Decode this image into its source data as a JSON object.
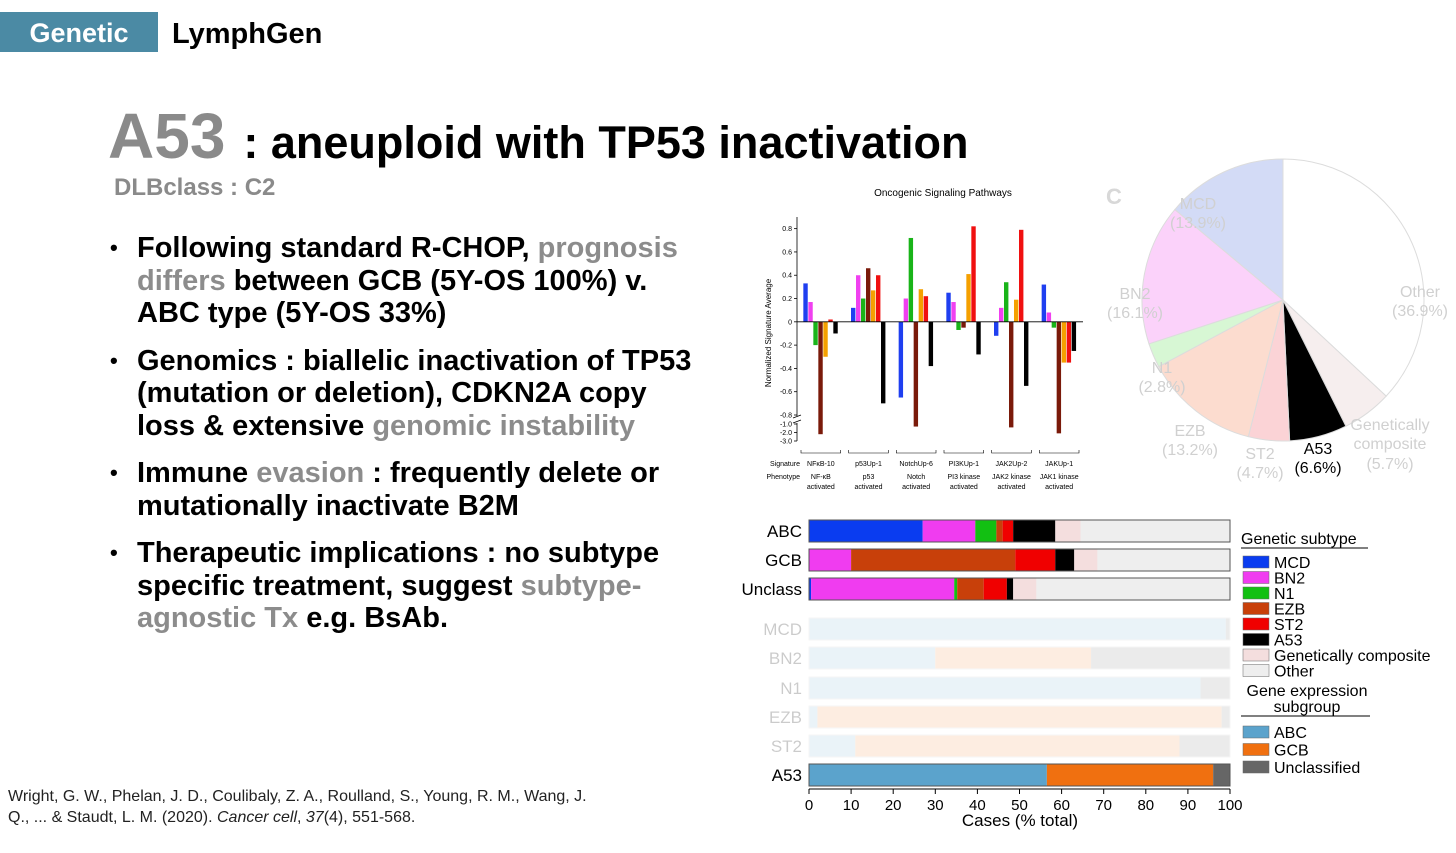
{
  "header": {
    "tag": "Genetic",
    "title": "LymphGen"
  },
  "title": {
    "main": "A53",
    "rest": ": aneuploid with TP53 inactivation",
    "sub": "DLBclass : C2"
  },
  "bullets": [
    [
      "Following standard R-CHOP, ",
      {
        "text": "prognosis differs",
        "color": "#8c8c8c"
      },
      " between GCB (5Y-OS 100%) v. ABC type (5Y-OS 33%)"
    ],
    [
      "Genomics : biallelic inactivation of TP53 (mutation or deletion), CDKN2A copy loss & extensive ",
      {
        "text": "genomic instability",
        "color": "#8c8c8c"
      }
    ],
    [
      "Immune ",
      {
        "text": "evasion",
        "color": "#8c8c8c"
      },
      " : frequently delete or mutationally inactivate B2M"
    ],
    [
      "Therapeutic implications : no subtype specific treatment, suggest ",
      {
        "text": "subtype-agnostic Tx",
        "color": "#8c8c8c"
      },
      " e.g. BsAb."
    ]
  ],
  "citation": [
    "Wright, G. W., Phelan, J. D., Coulibaly, Z. A., Roulland, S., Young, R. M., Wang, J. Q., ... & Staudt, L. M. (2020). ",
    {
      "text": "Cancer cell",
      "italic": true
    },
    ", ",
    {
      "text": "37",
      "italic": true
    },
    "(4), 551-568."
  ],
  "chart_data": [
    {
      "type": "bar",
      "title": "Oncogenic Signaling Pathways",
      "ylabel": "Normalized Signature Average",
      "row_labels": [
        "Signature",
        "Phenotype"
      ],
      "categories": [
        "NFκB-10",
        "p53Up-1",
        "NotchUp-6",
        "PI3KUp-1",
        "JAK2Up-2",
        "JAKUp-1"
      ],
      "phenotypes": [
        "NF-κB activated",
        "p53 activated",
        "Notch activated",
        "PI3 kinase activated",
        "JAK2 kinase activated",
        "JAK1 kinase activated"
      ],
      "series": [
        {
          "color": "#1f3ff0",
          "values": [
            0.33,
            0.12,
            -0.65,
            0.25,
            -0.12,
            0.32
          ]
        },
        {
          "color": "#f040f0",
          "values": [
            0.17,
            0.4,
            0.2,
            0.17,
            0.12,
            0.08
          ]
        },
        {
          "color": "#19b419",
          "values": [
            -0.2,
            0.2,
            0.72,
            -0.07,
            0.34,
            -0.05
          ]
        },
        {
          "color": "#7a1a0a",
          "values": [
            -2.2,
            0.46,
            -1.3,
            -0.05,
            -1.4,
            -2.1
          ]
        },
        {
          "color": "#f5a000",
          "values": [
            -0.3,
            0.27,
            0.28,
            0.41,
            0.19,
            -0.35
          ]
        },
        {
          "color": "#f01010",
          "values": [
            0.02,
            0.4,
            0.22,
            0.82,
            0.79,
            -0.35
          ]
        },
        {
          "color": "#000000",
          "values": [
            -0.1,
            -0.7,
            -0.38,
            -0.28,
            -0.55,
            -0.25
          ]
        }
      ],
      "ylim": [
        -3.0,
        0.9
      ],
      "ybreak": [
        -0.8,
        -1.0
      ],
      "yticks": [
        0.8,
        0.6,
        0.4,
        0.2,
        0,
        -0.2,
        -0.4,
        -0.6,
        -0.8,
        {
          "value": -1,
          "label": "-1.0"
        },
        {
          "value": -2,
          "label": "-2.0"
        },
        {
          "value": -3,
          "label": "-3.0"
        }
      ]
    },
    {
      "type": "pie",
      "panel": "C",
      "labels": [
        "Other",
        "Genetically composite",
        "A53",
        "ST2",
        "EZB",
        "N1",
        "BN2",
        "MCD"
      ],
      "values": [
        36.9,
        5.7,
        6.6,
        4.7,
        13.2,
        2.8,
        16.1,
        13.9
      ],
      "value_labels": [
        "(36.9%)",
        "(5.7%)",
        "(6.6%)",
        "(4.7%)",
        "(13.2%)",
        "(2.8%)",
        "(16.1%)",
        "(13.9%)"
      ],
      "colors": [
        "#ffffff",
        "#f6eeee",
        "#000000",
        "#fbd3d6",
        "#fcdccf",
        "#d7f7d4",
        "#fbd2fa",
        "#d3dbf6"
      ],
      "label_colors": [
        "#d0d0d0",
        "#d0d0d0",
        "#000000",
        "#d0d0d0",
        "#d0d0d0",
        "#d0d0d0",
        "#d0d0d0",
        "#d0d0d0"
      ]
    },
    {
      "type": "stacked_barh",
      "categories": [
        "ABC",
        "GCB",
        "Unclass",
        "MCD",
        "BN2",
        "N1",
        "EZB",
        "ST2",
        "A53"
      ],
      "category_opacity": [
        1,
        1,
        1,
        0.12,
        0.12,
        0.12,
        0.12,
        0.12,
        1
      ],
      "series_groups": [
        {
          "title": "Genetic subtype",
          "series": [
            {
              "name": "MCD",
              "color": "#0a3cf0",
              "values": [
                27,
                0,
                0.5,
                null,
                null,
                null,
                null,
                null,
                null
              ]
            },
            {
              "name": "BN2",
              "color": "#f03cf0",
              "values": [
                12.5,
                10,
                34,
                null,
                null,
                null,
                null,
                null,
                null
              ]
            },
            {
              "name": "N1",
              "color": "#12c012",
              "values": [
                5,
                0,
                0.7,
                null,
                null,
                null,
                null,
                null,
                null
              ]
            },
            {
              "name": "EZB",
              "color": "#c8400a",
              "values": [
                1.5,
                39,
                6.3,
                null,
                null,
                null,
                null,
                null,
                null
              ]
            },
            {
              "name": "ST2",
              "color": "#f00000",
              "values": [
                2.5,
                9.5,
                5.5,
                null,
                null,
                null,
                null,
                null,
                null
              ]
            },
            {
              "name": "A53",
              "color": "#000000",
              "values": [
                10,
                4.5,
                1.5,
                null,
                null,
                null,
                null,
                null,
                null
              ]
            },
            {
              "name": "Genetically composite",
              "color": "#f4dede",
              "values": [
                6,
                5.5,
                5.5,
                null,
                null,
                null,
                null,
                null,
                null
              ]
            },
            {
              "name": "Other",
              "color": "#eeeeee",
              "values": [
                35.5,
                31.5,
                46,
                null,
                null,
                null,
                null,
                null,
                null
              ]
            }
          ]
        },
        {
          "title": "Gene expression subgroup",
          "series": [
            {
              "name": "ABC",
              "color": "#5ba3cc",
              "values": [
                null,
                null,
                null,
                99,
                30,
                93,
                2,
                11,
                56.5
              ]
            },
            {
              "name": "GCB",
              "color": "#f07010",
              "values": [
                null,
                null,
                null,
                0,
                37,
                0,
                96,
                77,
                39.5
              ]
            },
            {
              "name": "Unclassified",
              "color": "#666666",
              "values": [
                null,
                null,
                null,
                1,
                33,
                7,
                2,
                12,
                4
              ]
            }
          ]
        }
      ],
      "xlabel": "Cases (% total)",
      "xlim": [
        0,
        100
      ],
      "xticks": [
        0,
        10,
        20,
        30,
        40,
        50,
        60,
        70,
        80,
        90,
        100
      ]
    }
  ]
}
